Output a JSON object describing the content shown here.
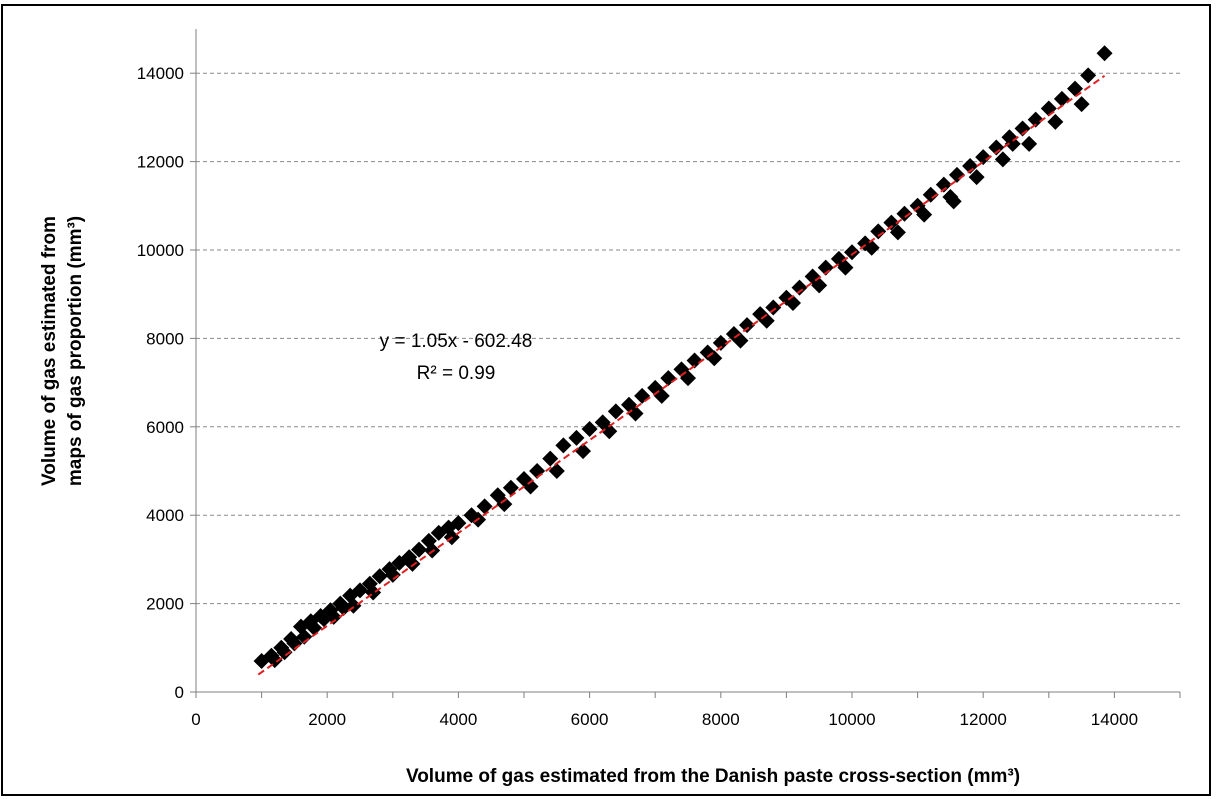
{
  "chart_data": {
    "type": "scatter",
    "xlabel": "Volume of gas estimated from the Danish paste cross-section  (mm³)",
    "ylabel_line1": "Volume  of gas estimated from",
    "ylabel_line2": "maps of gas proportion  (mm³)",
    "xlim": [
      0,
      15000
    ],
    "ylim": [
      0,
      15000
    ],
    "xticks": [
      0,
      2000,
      4000,
      6000,
      8000,
      10000,
      12000,
      14000
    ],
    "yticks": [
      0,
      2000,
      4000,
      6000,
      8000,
      10000,
      12000,
      14000
    ],
    "grid": "horizontal-dashed",
    "trendline": {
      "slope": 1.05,
      "intercept": -602.48,
      "x_range": [
        950,
        13850
      ],
      "color": "#e02020",
      "equation": "y = 1.05x - 602.48",
      "r2": "R² = 0.99"
    },
    "marker_color": "#000000",
    "series": [
      {
        "x": [
          1000,
          1150,
          1300,
          1450,
          1600,
          1750,
          1900,
          2050,
          2200,
          2350,
          2500,
          2650,
          2800,
          2950,
          3100,
          3250,
          3400,
          3550,
          3700,
          3850,
          4000,
          4200,
          4400,
          4600,
          4800,
          5000,
          5200,
          5400,
          5600,
          5800,
          6000,
          6200,
          6400,
          6600,
          6800,
          7000,
          7200,
          7400,
          7600,
          7800,
          8000,
          8200,
          8400,
          8600,
          8800,
          9000,
          9200,
          9400,
          9600,
          9800,
          10000,
          10200,
          10400,
          10600,
          10800,
          11000,
          11200,
          11400,
          11600,
          11800,
          12000,
          12200,
          12400,
          12600,
          12800,
          13000,
          13200,
          13400,
          13600,
          13850,
          1200,
          1500,
          1800,
          2100,
          2400,
          2700,
          3000,
          3300,
          3600,
          3900,
          4300,
          4700,
          5100,
          5500,
          5900,
          6300,
          6700,
          7100,
          7500,
          7900,
          8300,
          8700,
          9100,
          9500,
          9900,
          10300,
          10700,
          11100,
          11500,
          11900,
          12300,
          12700,
          13100,
          13500,
          1350,
          1650,
          1950,
          2250,
          11550,
          12450
        ],
        "y": [
          700,
          820,
          1000,
          1200,
          1480,
          1600,
          1720,
          1850,
          2000,
          2180,
          2300,
          2450,
          2620,
          2780,
          2920,
          3050,
          3220,
          3420,
          3600,
          3720,
          3820,
          4000,
          4200,
          4450,
          4620,
          4820,
          5000,
          5280,
          5580,
          5750,
          5950,
          6100,
          6350,
          6500,
          6700,
          6880,
          7100,
          7300,
          7500,
          7680,
          7900,
          8100,
          8300,
          8550,
          8700,
          8920,
          9150,
          9400,
          9600,
          9800,
          9950,
          10150,
          10420,
          10620,
          10820,
          11000,
          11250,
          11480,
          11700,
          11900,
          12100,
          12320,
          12550,
          12750,
          12950,
          13200,
          13420,
          13650,
          13950,
          14450,
          720,
          1100,
          1450,
          1700,
          1950,
          2250,
          2650,
          2900,
          3200,
          3500,
          3900,
          4250,
          4650,
          5000,
          5450,
          5900,
          6300,
          6700,
          7100,
          7550,
          7950,
          8400,
          8800,
          9200,
          9600,
          10050,
          10400,
          10800,
          11200,
          11650,
          12050,
          12400,
          12900,
          13300,
          900,
          1250,
          1650,
          1900,
          11100,
          12400
        ]
      }
    ]
  }
}
